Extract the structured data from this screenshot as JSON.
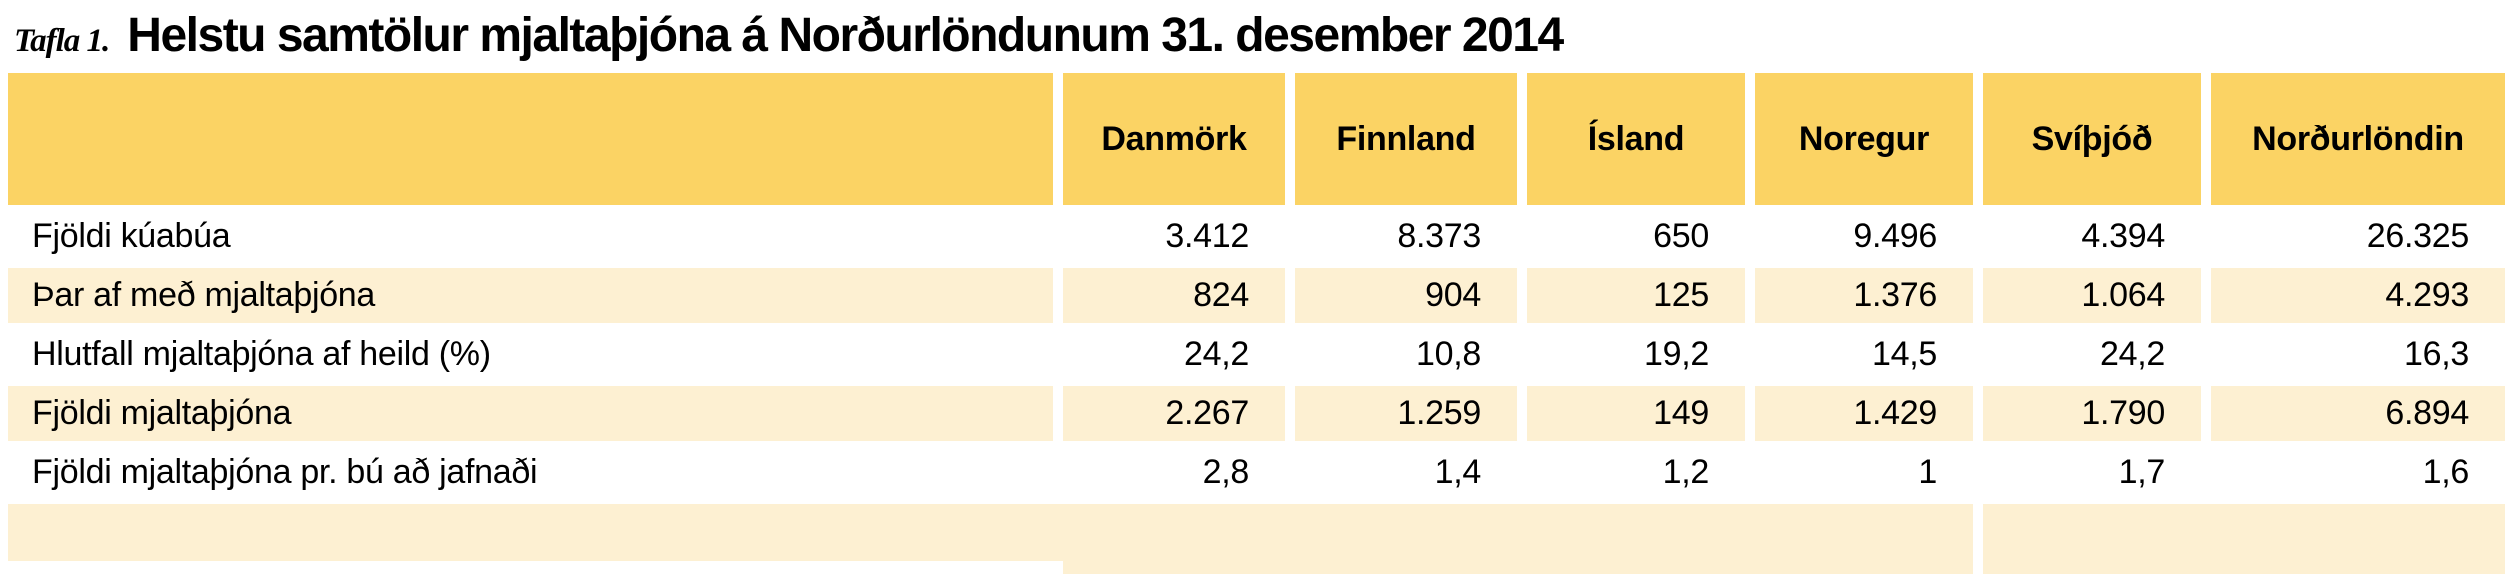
{
  "title": {
    "prefix": "Tafla 1.",
    "text": "Helstu samtölur mjaltaþjóna á Norðurlöndunum 31. desember 2014"
  },
  "table": {
    "columns": [
      "Danmörk",
      "Finnland",
      "Ísland",
      "Noregur",
      "Svíþjóð",
      "Norðurlöndin"
    ],
    "rows": [
      {
        "label": "Fjöldi kúabúa",
        "values": [
          "3.412",
          "8.373",
          "650",
          "9.496",
          "4.394",
          "26.325"
        ]
      },
      {
        "label": "Þar af með mjaltaþjóna",
        "values": [
          "824",
          "904",
          "125",
          "1.376",
          "1.064",
          "4.293"
        ]
      },
      {
        "label": "Hlutfall mjaltaþjóna af heild (%)",
        "values": [
          "24,2",
          "10,8",
          "19,2",
          "14,5",
          "24,2",
          "16,3"
        ]
      },
      {
        "label": "Fjöldi mjaltaþjóna",
        "values": [
          "2.267",
          "1.259",
          "149",
          "1.429",
          "1.790",
          "6.894"
        ]
      },
      {
        "label": "Fjöldi mjaltaþjóna pr. bú að jafnaði",
        "values": [
          "2,8",
          "1,4",
          "1,2",
          "1",
          "1,7",
          "1,6"
        ]
      }
    ]
  },
  "colors": {
    "header_bg": "#FBD364",
    "row_alt_bg": "#FDF0D2",
    "row_bg": "#FFFFFF",
    "text": "#000000"
  }
}
